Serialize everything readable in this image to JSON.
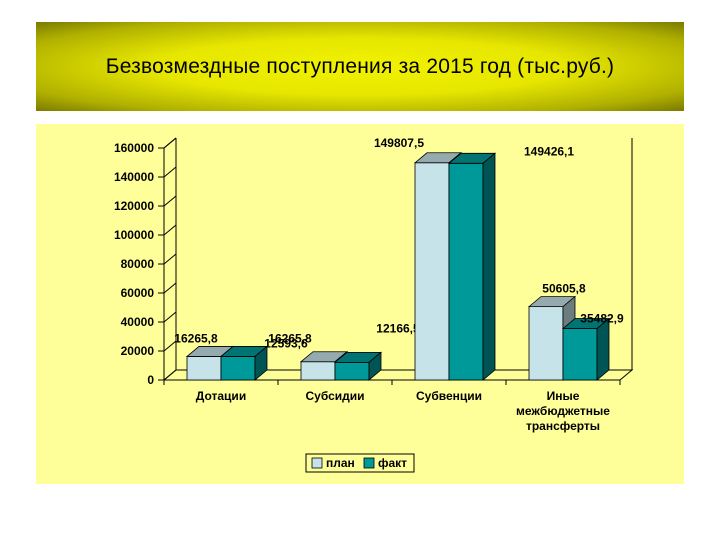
{
  "title": "Безвозмездные поступления за 2015 год (тыс.руб.)",
  "colors": {
    "banner": "#e6e600",
    "panel": "#ffff99",
    "plan": "#c5e3e8",
    "fact": "#009999"
  },
  "chart_data": {
    "type": "bar",
    "title": "Безвозмездные поступления за 2015 год (тыс.руб.)",
    "categories": [
      [
        "Дотации"
      ],
      [
        "Субсидии"
      ],
      [
        "Субвенции"
      ],
      [
        "Иные",
        "межбюджетные",
        "трансферты"
      ]
    ],
    "series": [
      {
        "name": "план",
        "values": [
          16265.8,
          12593.6,
          149807.5,
          50605.8
        ],
        "labels": [
          "16265,8",
          "12593,6",
          "149807,5",
          "50605,8"
        ]
      },
      {
        "name": "факт",
        "values": [
          16265.8,
          12166.5,
          149426.1,
          35482.9
        ],
        "labels": [
          "16265,8",
          "12166,5",
          "149426,1",
          "35482,9"
        ]
      }
    ],
    "ylim": [
      0,
      160000
    ],
    "yticks": [
      "0",
      "20000",
      "40000",
      "60000",
      "80000",
      "100000",
      "120000",
      "140000",
      "160000"
    ],
    "grid": false,
    "legend": "bottom-center",
    "style": "3d-clustered-column"
  }
}
